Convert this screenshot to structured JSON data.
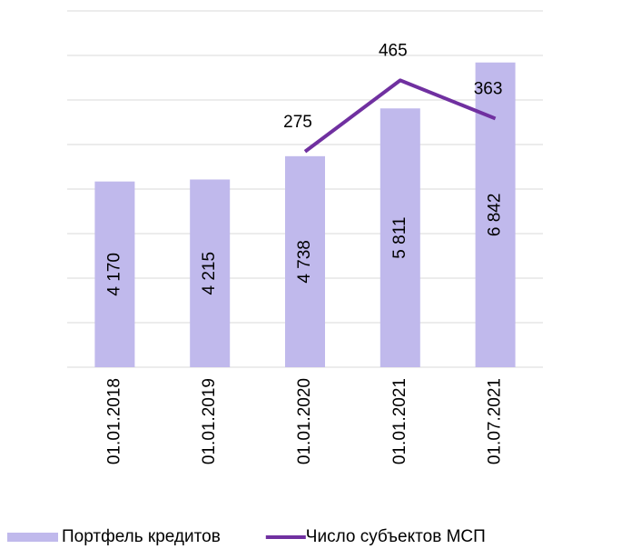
{
  "chart_data": {
    "type": "bar_line",
    "categories": [
      "01.01.2018",
      "01.01.2019",
      "01.01.2020",
      "01.01.2021",
      "01.07.2021"
    ],
    "series": [
      {
        "name": "Портфель кредитов",
        "type": "bar",
        "color": "#c0b9ec",
        "values": [
          4170,
          4215,
          4738,
          5811,
          6842
        ],
        "value_labels": [
          "4 170",
          "4 215",
          "4 738",
          "5 811",
          "6 842"
        ]
      },
      {
        "name": "Число субъектов МСП",
        "type": "line",
        "axis": "y2",
        "color": "#7030a0",
        "values": [
          null,
          null,
          275,
          465,
          363
        ]
      }
    ],
    "ylim": [
      0,
      8000
    ],
    "yticks": [
      0,
      1000,
      2000,
      3000,
      4000,
      5000,
      6000,
      7000,
      8000
    ],
    "y2lim": [
      -300,
      650
    ],
    "grid": true,
    "y_tick_labels": false,
    "legend": "bottom"
  }
}
